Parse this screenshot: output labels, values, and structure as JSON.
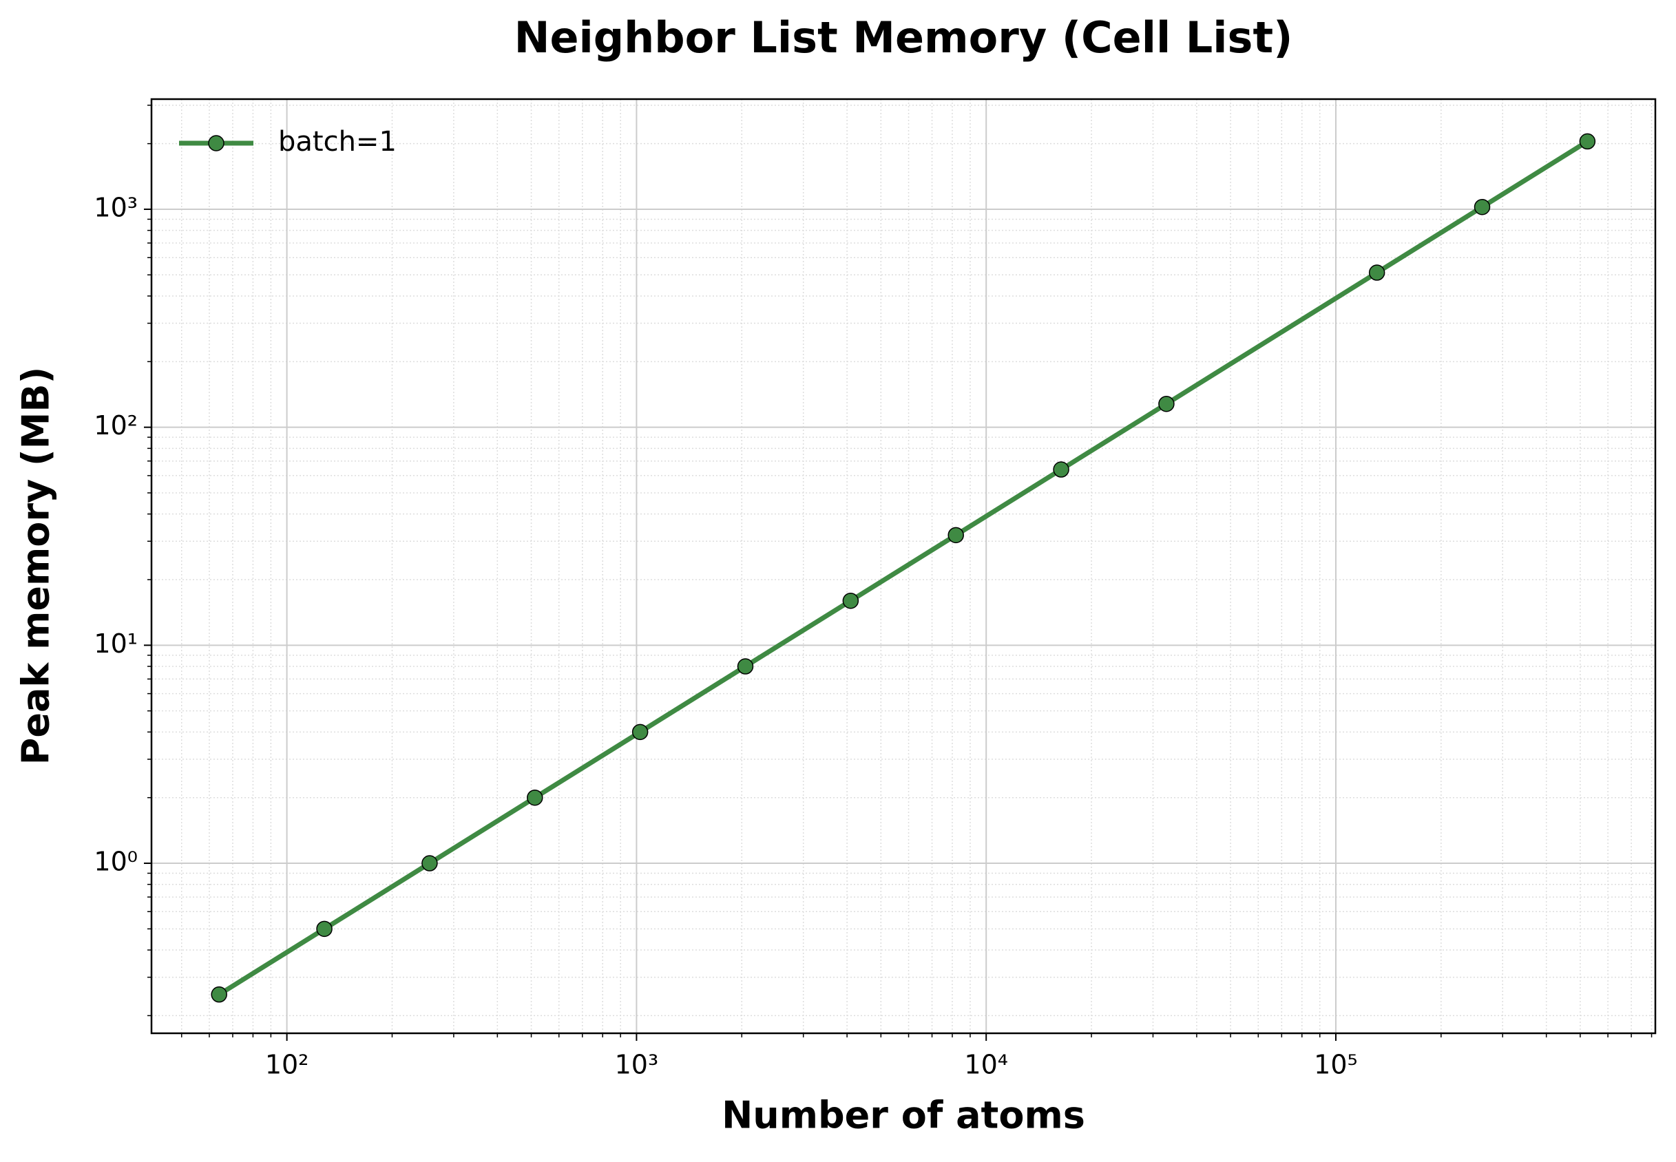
{
  "chart_data": {
    "type": "line",
    "title": "Neighbor List Memory (Cell List)",
    "x_label": "Number of atoms",
    "y_label": "Peak memory (MB)",
    "x": [
      64,
      128,
      256,
      512,
      1024,
      2048,
      4096,
      8192,
      16384,
      32768,
      131072,
      262144,
      524288
    ],
    "series": [
      {
        "name": "batch=1",
        "color": "#3f8a43",
        "values": [
          0.25,
          0.5,
          1,
          2,
          4,
          8,
          16,
          32,
          64,
          128,
          512,
          1024,
          2048
        ]
      }
    ],
    "xscale": "log",
    "yscale": "log",
    "xlim": [
      41,
      820000
    ],
    "ylim": [
      0.166,
      3200
    ],
    "xticks": [
      {
        "value": 100,
        "label": "10²"
      },
      {
        "value": 1000,
        "label": "10³"
      },
      {
        "value": 10000,
        "label": "10⁴"
      },
      {
        "value": 100000,
        "label": "10⁵"
      }
    ],
    "yticks": [
      {
        "value": 1,
        "label": "10⁰"
      },
      {
        "value": 10,
        "label": "10¹"
      },
      {
        "value": 100,
        "label": "10²"
      },
      {
        "value": 1000,
        "label": "10³"
      }
    ],
    "grid": true,
    "minor_grid": true,
    "legend": "upper left"
  }
}
